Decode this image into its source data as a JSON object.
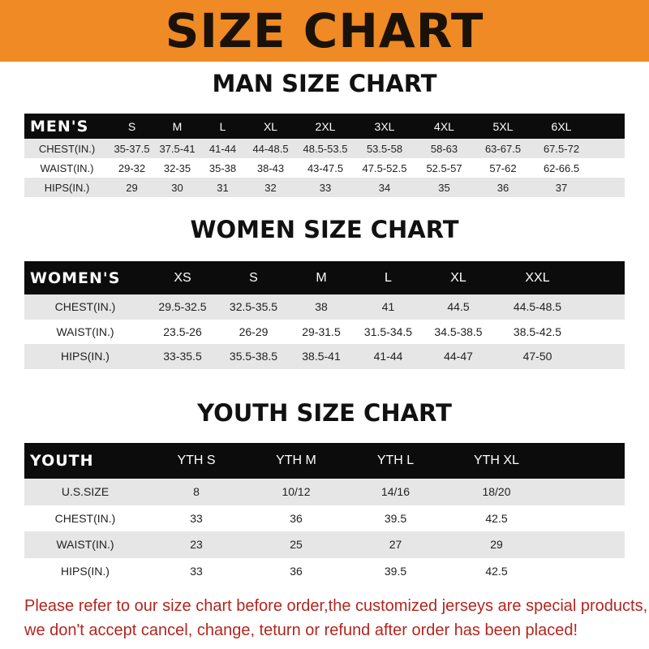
{
  "banner": {
    "title": "SIZE CHART",
    "color": "#f08a24"
  },
  "men": {
    "title": "MAN SIZE CHART",
    "header": [
      "MEN'S",
      "S",
      "M",
      "L",
      "XL",
      "2XL",
      "3XL",
      "4XL",
      "5XL",
      "6XL"
    ],
    "rows": [
      [
        "CHEST(IN.)",
        "35-37.5",
        "37.5-41",
        "41-44",
        "44-48.5",
        "48.5-53.5",
        "53.5-58",
        "58-63",
        "63-67.5",
        "67.5-72"
      ],
      [
        "WAIST(IN.)",
        "29-32",
        "32-35",
        "35-38",
        "38-43",
        "43-47.5",
        "47.5-52.5",
        "52.5-57",
        "57-62",
        "62-66.5"
      ],
      [
        "HIPS(IN.)",
        "29",
        "30",
        "31",
        "32",
        "33",
        "34",
        "35",
        "36",
        "37"
      ]
    ]
  },
  "women": {
    "title": "WOMEN SIZE CHART",
    "header": [
      "WOMEN'S",
      "XS",
      "S",
      "M",
      "L",
      "XL",
      "XXL"
    ],
    "rows": [
      [
        "CHEST(IN.)",
        "29.5-32.5",
        "32.5-35.5",
        "38",
        "41",
        "44.5",
        "44.5-48.5"
      ],
      [
        "WAIST(IN.)",
        "23.5-26",
        "26-29",
        "29-31.5",
        "31.5-34.5",
        "34.5-38.5",
        "38.5-42.5"
      ],
      [
        "HIPS(IN.)",
        "33-35.5",
        "35.5-38.5",
        "38.5-41",
        "41-44",
        "44-47",
        "47-50"
      ]
    ]
  },
  "youth": {
    "title": "YOUTH SIZE CHART",
    "header": [
      "YOUTH",
      "YTH S",
      "YTH M",
      "YTH L",
      "YTH XL"
    ],
    "rows": [
      [
        "U.S.SIZE",
        "8",
        "10/12",
        "14/16",
        "18/20"
      ],
      [
        "CHEST(IN.)",
        "33",
        "36",
        "39.5",
        "42.5"
      ],
      [
        "WAIST(IN.)",
        "23",
        "25",
        "27",
        "29"
      ],
      [
        "HIPS(IN.)",
        "33",
        "36",
        "39.5",
        "42.5"
      ]
    ]
  },
  "notice": {
    "line1": "Please refer to our size chart before order,the customized jerseys are special products,",
    "line2": "we don't accept cancel, change, teturn or refund after order has been placed!",
    "color": "#b3261e"
  }
}
